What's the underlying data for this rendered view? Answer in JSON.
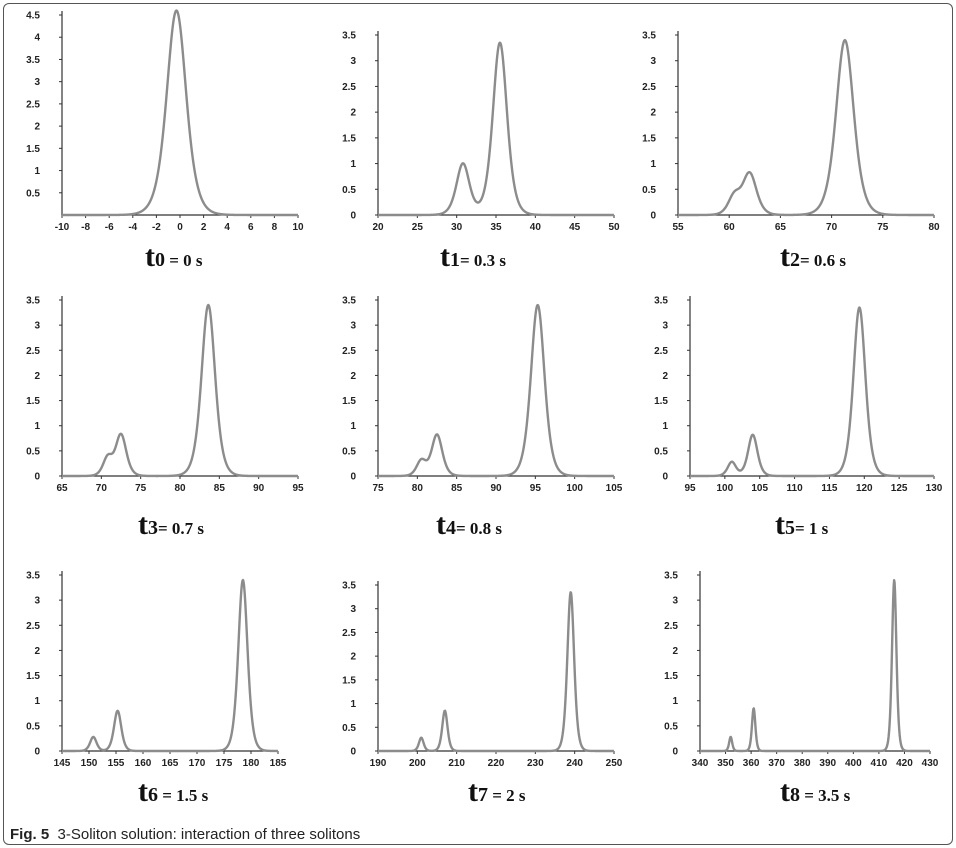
{
  "caption": {
    "label": "Fig. 5",
    "text": "3-Soliton solution: interaction of three solitons"
  },
  "colors": {
    "curve": "#8c8c8c",
    "axis": "#333333",
    "text": "#111111",
    "frame": "#555555"
  },
  "chart_data": [
    {
      "type": "line",
      "time_label": {
        "t": "t",
        "sub": "0",
        "rest": " = 0 s"
      },
      "xlim": [
        -10,
        10
      ],
      "ylim": [
        0,
        4.5
      ],
      "xticks": [
        -10,
        -8,
        -6,
        -4,
        -2,
        0,
        2,
        4,
        6,
        8,
        10
      ],
      "yticks": [
        0.5,
        1,
        1.5,
        2,
        2.5,
        3,
        3.5,
        4,
        4.5
      ],
      "peaks": [
        {
          "x": -0.3,
          "height": 4.6,
          "width": 1.1
        }
      ]
    },
    {
      "type": "line",
      "time_label": {
        "t": "t",
        "sub": "1",
        "rest": "= 0.3 s"
      },
      "xlim": [
        20,
        50
      ],
      "ylim": [
        0,
        3.5
      ],
      "xticks": [
        20,
        25,
        30,
        35,
        40,
        45,
        50
      ],
      "yticks": [
        0,
        0.5,
        1,
        1.5,
        2,
        2.5,
        3,
        3.5
      ],
      "peaks": [
        {
          "x": 30.8,
          "height": 1.0,
          "width": 1.1
        },
        {
          "x": 35.5,
          "height": 3.35,
          "width": 1.2
        }
      ]
    },
    {
      "type": "line",
      "time_label": {
        "t": "t",
        "sub": "2",
        "rest": "= 0.6 s"
      },
      "xlim": [
        55,
        80
      ],
      "ylim": [
        0,
        3.5
      ],
      "xticks": [
        55,
        60,
        65,
        70,
        75,
        80
      ],
      "yticks": [
        0,
        0.5,
        1,
        1.5,
        2,
        2.5,
        3,
        3.5
      ],
      "peaks": [
        {
          "x": 60.5,
          "height": 0.35,
          "width": 0.8
        },
        {
          "x": 62.0,
          "height": 0.8,
          "width": 0.9
        },
        {
          "x": 71.3,
          "height": 3.4,
          "width": 1.15
        }
      ]
    },
    {
      "type": "line",
      "time_label": {
        "t": "t",
        "sub": "3",
        "rest": "= 0.7 s"
      },
      "xlim": [
        65,
        95
      ],
      "ylim": [
        0,
        3.5
      ],
      "xticks": [
        65,
        70,
        75,
        80,
        85,
        90,
        95
      ],
      "yticks": [
        0,
        0.5,
        1,
        1.5,
        2,
        2.5,
        3,
        3.5
      ],
      "peaks": [
        {
          "x": 70.8,
          "height": 0.35,
          "width": 0.8
        },
        {
          "x": 72.5,
          "height": 0.82,
          "width": 0.9
        },
        {
          "x": 83.6,
          "height": 3.4,
          "width": 1.15
        }
      ]
    },
    {
      "type": "line",
      "time_label": {
        "t": "t",
        "sub": "4",
        "rest": "= 0.8 s"
      },
      "xlim": [
        75,
        105
      ],
      "ylim": [
        0,
        3.5
      ],
      "xticks": [
        75,
        80,
        85,
        90,
        95,
        100,
        105
      ],
      "yticks": [
        0,
        0.5,
        1,
        1.5,
        2,
        2.5,
        3,
        3.5
      ],
      "peaks": [
        {
          "x": 80.5,
          "height": 0.3,
          "width": 0.8
        },
        {
          "x": 82.5,
          "height": 0.82,
          "width": 0.9
        },
        {
          "x": 95.3,
          "height": 3.4,
          "width": 1.15
        }
      ]
    },
    {
      "type": "line",
      "time_label": {
        "t": "t",
        "sub": "5",
        "rest": "= 1 s"
      },
      "xlim": [
        95,
        130
      ],
      "ylim": [
        0,
        3.5
      ],
      "xticks": [
        95,
        100,
        105,
        110,
        115,
        120,
        125,
        130
      ],
      "yticks": [
        0,
        0.5,
        1,
        1.5,
        2,
        2.5,
        3,
        3.5
      ],
      "peaks": [
        {
          "x": 101.0,
          "height": 0.28,
          "width": 0.8
        },
        {
          "x": 104.0,
          "height": 0.82,
          "width": 0.9
        },
        {
          "x": 119.3,
          "height": 3.35,
          "width": 1.15
        }
      ]
    },
    {
      "type": "line",
      "time_label": {
        "t": "t",
        "sub": "6",
        "rest": " = 1.5 s"
      },
      "xlim": [
        145,
        185
      ],
      "ylim": [
        0,
        3.5
      ],
      "xticks": [
        145,
        150,
        155,
        160,
        165,
        170,
        175,
        180,
        185
      ],
      "yticks": [
        0,
        0.5,
        1,
        1.5,
        2,
        2.5,
        3,
        3.5
      ],
      "peaks": [
        {
          "x": 150.8,
          "height": 0.28,
          "width": 0.8
        },
        {
          "x": 155.3,
          "height": 0.8,
          "width": 0.9
        },
        {
          "x": 178.5,
          "height": 3.4,
          "width": 1.15
        }
      ]
    },
    {
      "type": "line",
      "time_label": {
        "t": "t",
        "sub": "7",
        "rest": " = 2 s"
      },
      "xlim": [
        190,
        250
      ],
      "ylim": [
        0,
        3.5
      ],
      "xticks": [
        190,
        200,
        210,
        220,
        230,
        240,
        250
      ],
      "yticks": [
        0,
        0.5,
        1,
        1.5,
        2,
        2.5,
        3,
        3.5
      ],
      "peaks": [
        {
          "x": 201.0,
          "height": 0.28,
          "width": 0.8
        },
        {
          "x": 207.0,
          "height": 0.85,
          "width": 0.9
        },
        {
          "x": 239.0,
          "height": 3.35,
          "width": 1.15
        }
      ]
    },
    {
      "type": "line",
      "time_label": {
        "t": "t",
        "sub": "8",
        "rest": " = 3.5 s"
      },
      "xlim": [
        340,
        430
      ],
      "ylim": [
        0,
        3.5
      ],
      "xticks": [
        340,
        350,
        360,
        370,
        380,
        390,
        400,
        410,
        420,
        430
      ],
      "yticks": [
        0,
        0.5,
        1,
        1.5,
        2,
        2.5,
        3,
        3.5
      ],
      "peaks": [
        {
          "x": 352.0,
          "height": 0.28,
          "width": 0.8
        },
        {
          "x": 361.0,
          "height": 0.85,
          "width": 0.9
        },
        {
          "x": 416.0,
          "height": 3.4,
          "width": 1.15
        }
      ]
    }
  ]
}
